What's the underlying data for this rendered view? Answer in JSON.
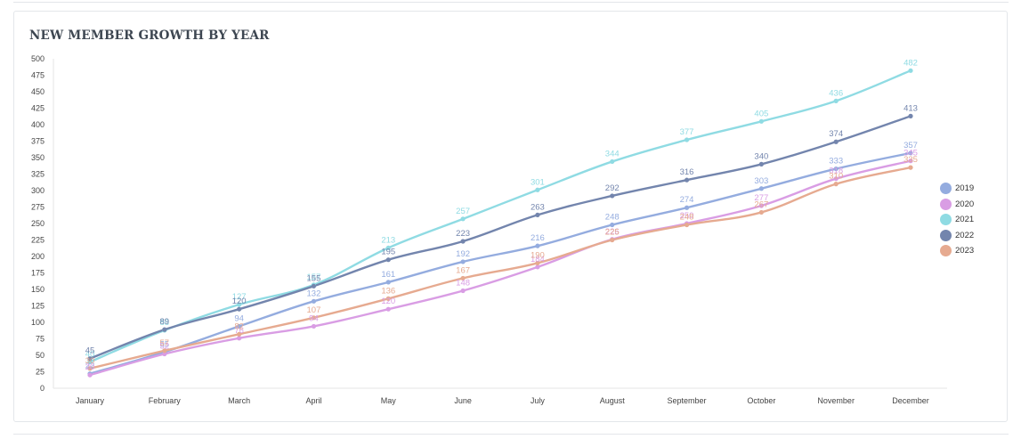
{
  "title": "NEW MEMBER GROWTH BY YEAR",
  "chart_data": {
    "type": "line",
    "title": "NEW MEMBER GROWTH BY YEAR",
    "categories": [
      "January",
      "February",
      "March",
      "April",
      "May",
      "June",
      "July",
      "August",
      "September",
      "October",
      "November",
      "December"
    ],
    "ylim": [
      0,
      500
    ],
    "yticks": [
      0,
      25,
      50,
      75,
      100,
      125,
      150,
      175,
      200,
      225,
      250,
      275,
      300,
      325,
      350,
      375,
      400,
      425,
      450,
      475,
      500
    ],
    "grid": false,
    "legend_position": "right",
    "series": [
      {
        "name": "2019",
        "color": "#94acdf",
        "values": [
          22,
          55,
          94,
          132,
          161,
          192,
          216,
          248,
          274,
          303,
          333,
          357
        ]
      },
      {
        "name": "2020",
        "color": "#d99de4",
        "values": [
          20,
          52,
          76,
          94,
          120,
          148,
          184,
          226,
          250,
          277,
          318,
          345
        ]
      },
      {
        "name": "2021",
        "color": "#8fdbe3",
        "values": [
          40,
          88,
          127,
          157,
          213,
          257,
          301,
          344,
          377,
          405,
          436,
          482
        ]
      },
      {
        "name": "2022",
        "color": "#7385ad",
        "values": [
          45,
          89,
          120,
          155,
          195,
          223,
          263,
          292,
          316,
          340,
          374,
          413
        ]
      },
      {
        "name": "2023",
        "color": "#e6aa90",
        "values": [
          30,
          57,
          82,
          107,
          136,
          167,
          190,
          225,
          248,
          267,
          310,
          335
        ]
      }
    ]
  }
}
